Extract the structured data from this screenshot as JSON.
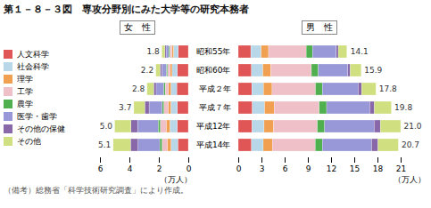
{
  "chart_data": {
    "type": "bar",
    "orientation": "horizontal",
    "stacked": true,
    "legend": "left",
    "title": "第１－８－３図　専攻分野別にみた大学等の研究本務者",
    "footnote": "（備考）総務省「科学技術研究調査」により作成。",
    "categories": [
      "昭和55年",
      "昭和60年",
      "平成２年",
      "平成７年",
      "平成12年",
      "平成14年"
    ],
    "panels": [
      {
        "title": "女　性",
        "xlabel": "（万人）",
        "xlim": [
          6,
          0
        ],
        "xticks": [
          0,
          2,
          4,
          6
        ],
        "totals": [
          1.8,
          2.2,
          2.8,
          3.7,
          5.0,
          5.1
        ],
        "total_labels": [
          "1.8",
          "2.2",
          "2.8",
          "3.7",
          "5.0",
          "5.1"
        ],
        "series": [
          {
            "name": "人文科学",
            "color": "#e05555",
            "values": [
              0.684,
              0.748,
              0.784,
              0.74,
              0.75,
              0.714
            ]
          },
          {
            "name": "社会科学",
            "color": "#b8d8ea",
            "values": [
              0.324,
              0.352,
              0.392,
              0.444,
              0.5,
              0.459
            ]
          },
          {
            "name": "理学",
            "color": "#f0a050",
            "values": [
              0.108,
              0.132,
              0.168,
              0.185,
              0.25,
              0.255
            ]
          },
          {
            "name": "工学",
            "color": "#f0c0c8",
            "values": [
              0.144,
              0.176,
              0.224,
              0.296,
              0.4,
              0.357
            ]
          },
          {
            "name": "農学",
            "color": "#50b050",
            "values": [
              0.072,
              0.088,
              0.112,
              0.111,
              0.15,
              0.153
            ]
          },
          {
            "name": "医学・歯学",
            "color": "#9898d8",
            "values": [
              0.18,
              0.308,
              0.504,
              0.888,
              1.4,
              1.479
            ]
          },
          {
            "name": "その他の保健",
            "color": "#8868a8",
            "values": [
              0.072,
              0.11,
              0.168,
              0.296,
              0.45,
              0.51
            ]
          },
          {
            "name": "その他",
            "color": "#d0df80",
            "values": [
              0.216,
              0.286,
              0.448,
              0.74,
              1.1,
              1.173
            ]
          }
        ]
      },
      {
        "title": "男　性",
        "xlabel": "（万人）",
        "xlim": [
          0,
          21
        ],
        "xticks": [
          0,
          3,
          6,
          9,
          12,
          15,
          18,
          21
        ],
        "totals": [
          14.1,
          15.9,
          17.8,
          19.8,
          21.0,
          20.7
        ],
        "total_labels": [
          "14.1",
          "15.9",
          "17.8",
          "19.8",
          "21.0",
          "20.7"
        ],
        "series": [
          {
            "name": "人文科学",
            "color": "#e05555",
            "values": [
              1.6215,
              1.7172,
              1.7444,
              1.8216,
              1.785,
              1.7181
            ]
          },
          {
            "name": "社会科学",
            "color": "#b8d8ea",
            "values": [
              1.3395,
              1.4628,
              1.513,
              1.584,
              1.554,
              1.5111
            ]
          },
          {
            "name": "理学",
            "color": "#f0a050",
            "values": [
              0.9588,
              1.0335,
              1.1214,
              1.2276,
              1.218,
              1.1799
            ]
          },
          {
            "name": "工学",
            "color": "#f0c0c8",
            "values": [
              4.8645,
              5.247,
              5.607,
              5.841,
              5.67,
              5.5476
            ]
          },
          {
            "name": "農学",
            "color": "#50b050",
            "values": [
              0.8178,
              0.8904,
              0.89,
              0.9504,
              0.945,
              0.9108
            ]
          },
          {
            "name": "医学・歯学",
            "color": "#9898d8",
            "values": [
              3.0738,
              3.816,
              4.628,
              5.5836,
              6.405,
              6.3756
            ]
          },
          {
            "name": "その他の保健",
            "color": "#8868a8",
            "values": [
              0.2538,
              0.318,
              0.445,
              0.594,
              0.798,
              0.828
            ]
          },
          {
            "name": "その他",
            "color": "#d0df80",
            "values": [
              1.1139,
              1.4151,
              1.8512,
              2.1978,
              2.625,
              2.6289
            ]
          }
        ]
      }
    ]
  }
}
